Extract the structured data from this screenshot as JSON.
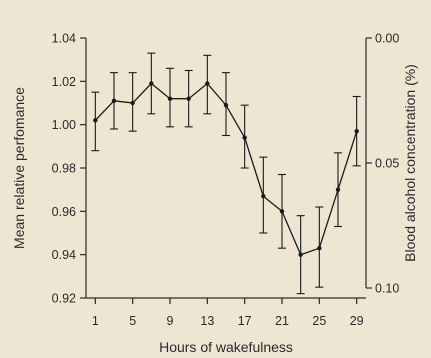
{
  "chart_data": {
    "type": "line",
    "title": "",
    "xlabel": "Hours of wakefulness",
    "ylabel": "Mean relative perfomance",
    "y2label": "Blood alcohol concentration (%)",
    "xlim": [
      0,
      30
    ],
    "ylim": [
      0.92,
      1.04
    ],
    "y2lim": [
      0.0,
      0.1
    ],
    "y2_inverted": true,
    "x_ticks": [
      1,
      5,
      9,
      13,
      17,
      21,
      25,
      29
    ],
    "y_ticks": [
      "0.92",
      "0.94",
      "0.96",
      "0.98",
      "1.00",
      "1.02",
      "1.04"
    ],
    "y2_ticks": [
      "0.00",
      "0.05",
      "0.10"
    ],
    "grid": false,
    "colors": {
      "background": "#efe5d3",
      "line": "#1a1a1a",
      "axis": "#2a2a2a"
    },
    "series": [
      {
        "x": [
          1,
          3,
          5,
          7,
          9,
          11,
          13,
          15,
          17,
          19,
          21,
          23,
          25,
          27,
          29
        ],
        "y": [
          1.002,
          1.011,
          1.01,
          1.019,
          1.012,
          1.012,
          1.019,
          1.009,
          0.994,
          0.967,
          0.96,
          0.94,
          0.943,
          0.97,
          0.997
        ],
        "err_low": [
          0.988,
          0.998,
          0.997,
          1.005,
          0.999,
          0.999,
          1.005,
          0.995,
          0.98,
          0.95,
          0.943,
          0.922,
          0.925,
          0.953,
          0.981
        ],
        "err_high": [
          1.015,
          1.024,
          1.024,
          1.033,
          1.026,
          1.025,
          1.032,
          1.024,
          1.009,
          0.985,
          0.977,
          0.958,
          0.962,
          0.987,
          1.013
        ]
      }
    ]
  }
}
